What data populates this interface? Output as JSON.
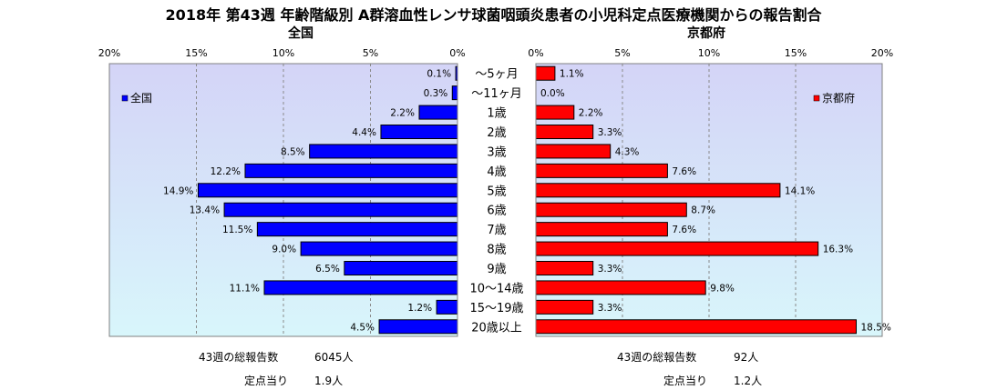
{
  "title": "2018年 第43週 年齢階級別 A群溶血性レンサ球菌咽頭炎患者の小児科定点医療機関からの報告割合",
  "left_subtitle": "全国",
  "right_subtitle": "京都府",
  "footer": {
    "left_total_label": "43週の総報告数",
    "left_total_value": "6045人",
    "left_per_label": "定点当り",
    "left_per_value": "1.9人",
    "right_total_label": "43週の総報告数",
    "right_total_value": "92人",
    "right_per_label": "定点当り",
    "right_per_value": "1.2人"
  },
  "colors": {
    "national_bar": "#0000ff",
    "kyoto_bar": "#ff0000",
    "plot_bg_top": "#d4d4f7",
    "plot_bg_bottom": "#d8f6fb",
    "gridline": "#8a8a8a"
  },
  "chart_data": {
    "type": "bar",
    "orientation": "horizontal-butterfly",
    "categories": [
      "～5ヶ月",
      "～11ヶ月",
      "1歳",
      "2歳",
      "3歳",
      "4歳",
      "5歳",
      "6歳",
      "7歳",
      "8歳",
      "9歳",
      "10～14歳",
      "15～19歳",
      "20歳以上"
    ],
    "xlim": [
      0,
      20
    ],
    "ticks": [
      0,
      5,
      10,
      15,
      20
    ],
    "tick_labels_left": [
      "20%",
      "15%",
      "10%",
      "5%",
      "0%"
    ],
    "tick_labels_right": [
      "0%",
      "5%",
      "10%",
      "15%",
      "20%"
    ],
    "grid": true,
    "series": [
      {
        "name": "全国",
        "side": "left",
        "values": [
          0.1,
          0.3,
          2.2,
          4.4,
          8.5,
          12.2,
          14.9,
          13.4,
          11.5,
          9.0,
          6.5,
          11.1,
          1.2,
          4.5
        ],
        "labels": [
          "0.1%",
          "0.3%",
          "2.2%",
          "4.4%",
          "8.5%",
          "12.2%",
          "14.9%",
          "13.4%",
          "11.5%",
          "9.0%",
          "6.5%",
          "11.1%",
          "1.2%",
          "4.5%"
        ]
      },
      {
        "name": "京都府",
        "side": "right",
        "values": [
          1.1,
          0.0,
          2.2,
          3.3,
          4.3,
          7.6,
          14.1,
          8.7,
          7.6,
          16.3,
          3.3,
          9.8,
          3.3,
          18.5
        ],
        "labels": [
          "1.1%",
          "0.0%",
          "2.2%",
          "3.3%",
          "4.3%",
          "7.6%",
          "14.1%",
          "8.7%",
          "7.6%",
          "16.3%",
          "3.3%",
          "9.8%",
          "3.3%",
          "18.5%"
        ]
      }
    ],
    "legend": [
      {
        "name": "全国",
        "placement": "top-left"
      },
      {
        "name": "京都府",
        "placement": "top-right"
      }
    ]
  }
}
